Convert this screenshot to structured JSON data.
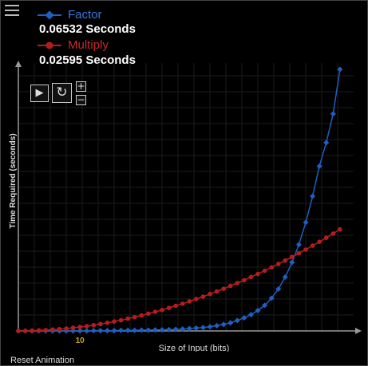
{
  "controls": {
    "reset_label": "Reset Animation",
    "play_icon": "play-icon",
    "reload_icon": "reload-icon",
    "zoom_in": "+",
    "zoom_out": "−"
  },
  "legend": [
    {
      "name": "Factor",
      "color": "#1f5fbf",
      "time": "0.06532 Seconds"
    },
    {
      "name": "Multiply",
      "color": "#b51d1d",
      "time": "0.02595 Seconds"
    }
  ],
  "chart_data": {
    "type": "line",
    "xlabel": "Size of Input (bits)",
    "ylabel": "Time Required (seconds)",
    "x_tick_labels": [
      {
        "x": 10,
        "label": "10"
      }
    ],
    "xlim": [
      1,
      50
    ],
    "ylim": [
      0,
      1
    ],
    "grid": true,
    "legend_position": "top-left",
    "series": [
      {
        "name": "Factor",
        "color": "#1f5fbf",
        "x": [
          1,
          2,
          3,
          4,
          5,
          6,
          7,
          8,
          9,
          10,
          11,
          12,
          13,
          14,
          15,
          16,
          17,
          18,
          19,
          20,
          21,
          22,
          23,
          24,
          25,
          26,
          27,
          28,
          29,
          30,
          31,
          32,
          33,
          34,
          35,
          36,
          37,
          38,
          39,
          40,
          41,
          42,
          43,
          44,
          45,
          46,
          47,
          48
        ],
        "values": [
          0,
          0,
          0,
          0,
          0,
          0,
          0,
          0,
          0,
          0,
          0,
          0.001,
          0.001,
          0.001,
          0.001,
          0.002,
          0.002,
          0.002,
          0.003,
          0.003,
          0.004,
          0.004,
          0.005,
          0.006,
          0.007,
          0.009,
          0.011,
          0.013,
          0.016,
          0.02,
          0.025,
          0.031,
          0.04,
          0.05,
          0.062,
          0.078,
          0.098,
          0.125,
          0.16,
          0.206,
          0.262,
          0.33,
          0.415,
          0.515,
          0.63,
          0.72,
          0.83,
          1.0
        ]
      },
      {
        "name": "Multiply",
        "color": "#b51d1d",
        "x": [
          1,
          2,
          3,
          4,
          5,
          6,
          7,
          8,
          9,
          10,
          11,
          12,
          13,
          14,
          15,
          16,
          17,
          18,
          19,
          20,
          21,
          22,
          23,
          24,
          25,
          26,
          27,
          28,
          29,
          30,
          31,
          32,
          33,
          34,
          35,
          36,
          37,
          38,
          39,
          40,
          41,
          42,
          43,
          44,
          45,
          46,
          47,
          48
        ],
        "values": [
          0,
          0,
          0.001,
          0.002,
          0.003,
          0.005,
          0.007,
          0.009,
          0.012,
          0.015,
          0.018,
          0.022,
          0.026,
          0.031,
          0.036,
          0.041,
          0.047,
          0.053,
          0.059,
          0.066,
          0.073,
          0.08,
          0.088,
          0.096,
          0.104,
          0.113,
          0.122,
          0.131,
          0.141,
          0.151,
          0.161,
          0.172,
          0.183,
          0.194,
          0.206,
          0.218,
          0.23,
          0.243,
          0.256,
          0.269,
          0.283,
          0.297,
          0.311,
          0.326,
          0.341,
          0.356,
          0.372,
          0.388
        ]
      }
    ]
  }
}
